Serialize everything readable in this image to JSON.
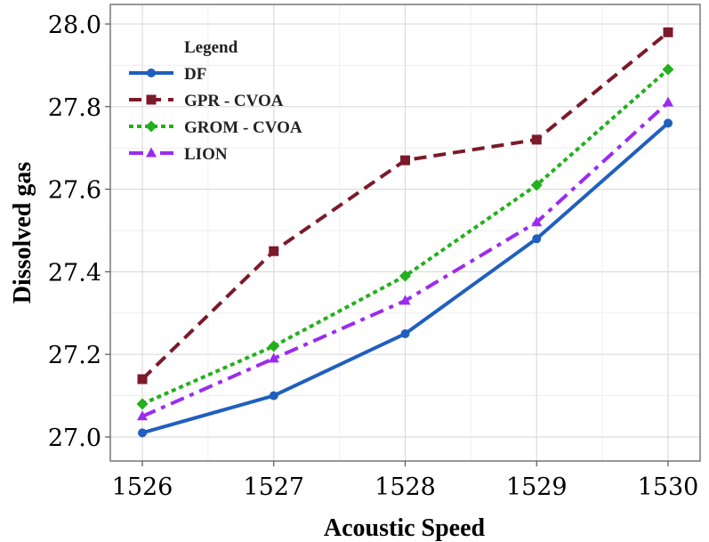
{
  "chart_data": {
    "type": "line",
    "xlabel": "Acoustic Speed",
    "ylabel": "Dissolved gas",
    "x": [
      1526,
      1527,
      1528,
      1529,
      1530
    ],
    "x_tick_labels": [
      "1526",
      "1527",
      "1528",
      "1529",
      "1530"
    ],
    "ylim": [
      27.0,
      28.0
    ],
    "y_ticks": [
      27.0,
      27.2,
      27.4,
      27.6,
      27.8,
      28.0
    ],
    "y_tick_labels": [
      "27.0",
      "27.2",
      "27.4",
      "27.6",
      "27.8",
      "28.0"
    ],
    "grid": true,
    "legend": {
      "title": "Legend",
      "position": "top-left"
    },
    "series": [
      {
        "name": "DF",
        "values": [
          27.01,
          27.1,
          27.25,
          27.48,
          27.76
        ],
        "color": "#1f5fbf",
        "dash": "solid",
        "marker": "circle"
      },
      {
        "name": "GPR - CVOA",
        "values": [
          27.14,
          27.45,
          27.67,
          27.72,
          27.98
        ],
        "color": "#7b1a2a",
        "dash": "dashed",
        "marker": "square"
      },
      {
        "name": "GROM - CVOA",
        "values": [
          27.08,
          27.22,
          27.39,
          27.61,
          27.89
        ],
        "color": "#22b01c",
        "dash": "dotted",
        "marker": "diamond"
      },
      {
        "name": "LION",
        "values": [
          27.05,
          27.19,
          27.33,
          27.52,
          27.81
        ],
        "color": "#9b2bf0",
        "dash": "dashdot",
        "marker": "triangle"
      }
    ]
  }
}
